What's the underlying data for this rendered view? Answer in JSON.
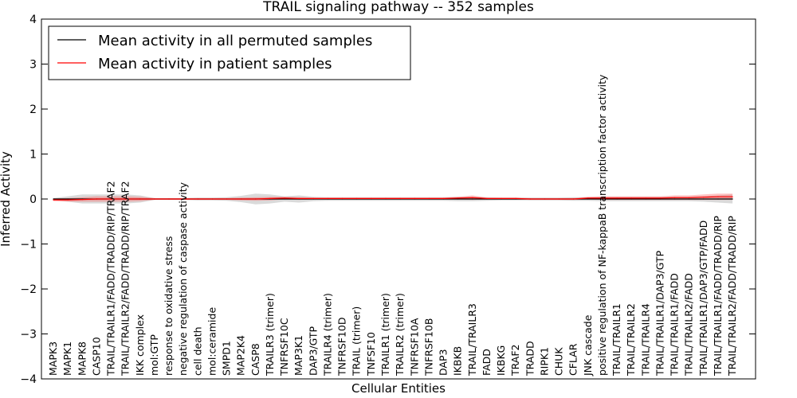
{
  "chart_data": {
    "type": "line",
    "title": "TRAIL signaling pathway -- 352 samples",
    "xlabel": "Cellular Entities",
    "ylabel": "Inferred Activity",
    "ylim": [
      -4,
      4
    ],
    "yticks": [
      "−4",
      "−3",
      "−2",
      "−1",
      "0",
      "1",
      "2",
      "3",
      "4"
    ],
    "grid": false,
    "legend_position": "upper-left",
    "categories": [
      "MAPK3",
      "MAPK1",
      "MAPK8",
      "CASP10",
      "TRAIL/TRAILR1/FADD/TRADD/RIP/TRAF2",
      "TRAIL/TRAILR2/FADD/TRADD/RIP/TRAF2",
      "IKK complex",
      "mol:GTP",
      "response to oxidative stress",
      "negative regulation of caspase activity",
      "cell death",
      "mol:ceramide",
      "SMPD1",
      "MAP2K4",
      "CASP8",
      "TRAILR3 (trimer)",
      "TNFRSF10C",
      "MAP3K1",
      "DAP3/GTP",
      "TRAILR4 (trimer)",
      "TNFRSF10D",
      "TRAIL (trimer)",
      "TNFSF10",
      "TRAILR1 (trimer)",
      "TRAILR2 (trimer)",
      "TNFRSF10A",
      "TNFRSF10B",
      "DAP3",
      "IKBKB",
      "TRAIL/TRAILR3",
      "FADD",
      "IKBKG",
      "TRAF2",
      "TRADD",
      "RIPK1",
      "CHUK",
      "CFLAR",
      "JNK cascade",
      "positive regulation of NF-kappaB transcription factor activity",
      "TRAIL/TRAILR1",
      "TRAIL/TRAILR2",
      "TRAIL/TRAILR4",
      "TRAIL/TRAILR1/DAP3/GTP",
      "TRAIL/TRAILR1/FADD",
      "TRAIL/TRAILR2/FADD",
      "TRAIL/TRAILR1/DAP3/GTP/FADD",
      "TRAIL/TRAILR1/FADD/TRADD/RIP",
      "TRAIL/TRAILR2/FADD/TRADD/RIP"
    ],
    "series": [
      {
        "name": "Mean activity in all permuted samples",
        "color": "#000000",
        "values": [
          0,
          0,
          0,
          0,
          0,
          0,
          0,
          0,
          0,
          0,
          0,
          0,
          0,
          0,
          0,
          0,
          0,
          0,
          0,
          0,
          0,
          0,
          0,
          0,
          0,
          0,
          0,
          0,
          0,
          0,
          0,
          0,
          0,
          0,
          0,
          0,
          0,
          0,
          0,
          0,
          0,
          0,
          0,
          0,
          0,
          0,
          0,
          0
        ],
        "band": [
          0.02,
          0.06,
          0.1,
          0.1,
          0.1,
          0.1,
          0.08,
          0.02,
          0.02,
          0.02,
          0.03,
          0.03,
          0.04,
          0.07,
          0.12,
          0.1,
          0.06,
          0.08,
          0.05,
          0.04,
          0.04,
          0.04,
          0.04,
          0.04,
          0.04,
          0.04,
          0.04,
          0.04,
          0.05,
          0.05,
          0.04,
          0.03,
          0.03,
          0.03,
          0.03,
          0.03,
          0.04,
          0.04,
          0.05,
          0.05,
          0.05,
          0.05,
          0.05,
          0.05,
          0.05,
          0.06,
          0.08,
          0.1
        ]
      },
      {
        "name": "Mean activity in patient samples",
        "color": "#ff0000",
        "values": [
          -0.02,
          -0.02,
          -0.01,
          0,
          0,
          0,
          0,
          0,
          0,
          0,
          0,
          0,
          0,
          0,
          0,
          0.01,
          0.02,
          0.01,
          0.01,
          0.01,
          0.01,
          0.01,
          0.01,
          0.01,
          0.01,
          0.01,
          0.01,
          0.01,
          0.02,
          0.03,
          0.01,
          0.01,
          0.01,
          0,
          0,
          0,
          0,
          0.02,
          0.02,
          0.02,
          0.02,
          0.02,
          0.02,
          0.03,
          0.03,
          0.04,
          0.05,
          0.05
        ],
        "band": [
          0.03,
          0.04,
          0.05,
          0.06,
          0.06,
          0.06,
          0.05,
          0.02,
          0.02,
          0.02,
          0.02,
          0.02,
          0.02,
          0.03,
          0.04,
          0.04,
          0.03,
          0.03,
          0.02,
          0.02,
          0.02,
          0.02,
          0.02,
          0.02,
          0.02,
          0.02,
          0.02,
          0.02,
          0.03,
          0.05,
          0.02,
          0.02,
          0.02,
          0.02,
          0.02,
          0.02,
          0.02,
          0.03,
          0.04,
          0.04,
          0.04,
          0.04,
          0.04,
          0.05,
          0.05,
          0.06,
          0.07,
          0.07
        ]
      }
    ]
  }
}
